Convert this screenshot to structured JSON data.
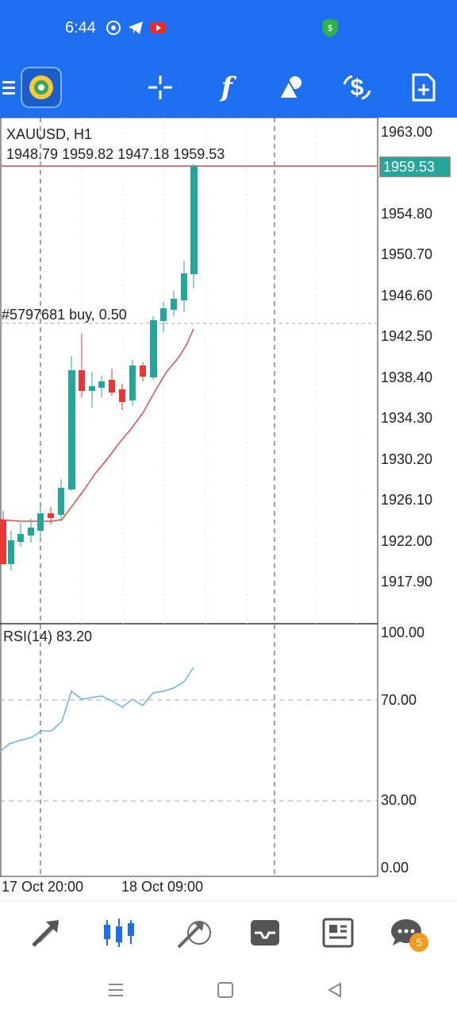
{
  "status_bar": {
    "time": "6:44"
  },
  "chart": {
    "symbol_tf": "XAUUSD, H1",
    "ohlc": "1948.79 1959.82 1947.18 1959.53",
    "current_price": "1959.53",
    "price_labels": [
      "1963.00",
      "1954.80",
      "1950.70",
      "1946.60",
      "1942.50",
      "1938.40",
      "1934.30",
      "1930.20",
      "1926.10",
      "1922.00",
      "1917.90"
    ],
    "position_label": "#5797681 buy, 0.50",
    "rsi_label": "RSI(14) 83.20",
    "rsi_levels": [
      "100.00",
      "70.00",
      "30.00",
      "0.00"
    ],
    "time_labels": [
      "17 Oct 20:00",
      "18 Oct 09:00"
    ]
  },
  "bottom_nav": {
    "chat_badge": "5"
  },
  "colors": {
    "accent": "#1E6FF0",
    "bull": "#26A69A",
    "bear": "#E53935",
    "rsi": "#6BB2F0"
  }
}
